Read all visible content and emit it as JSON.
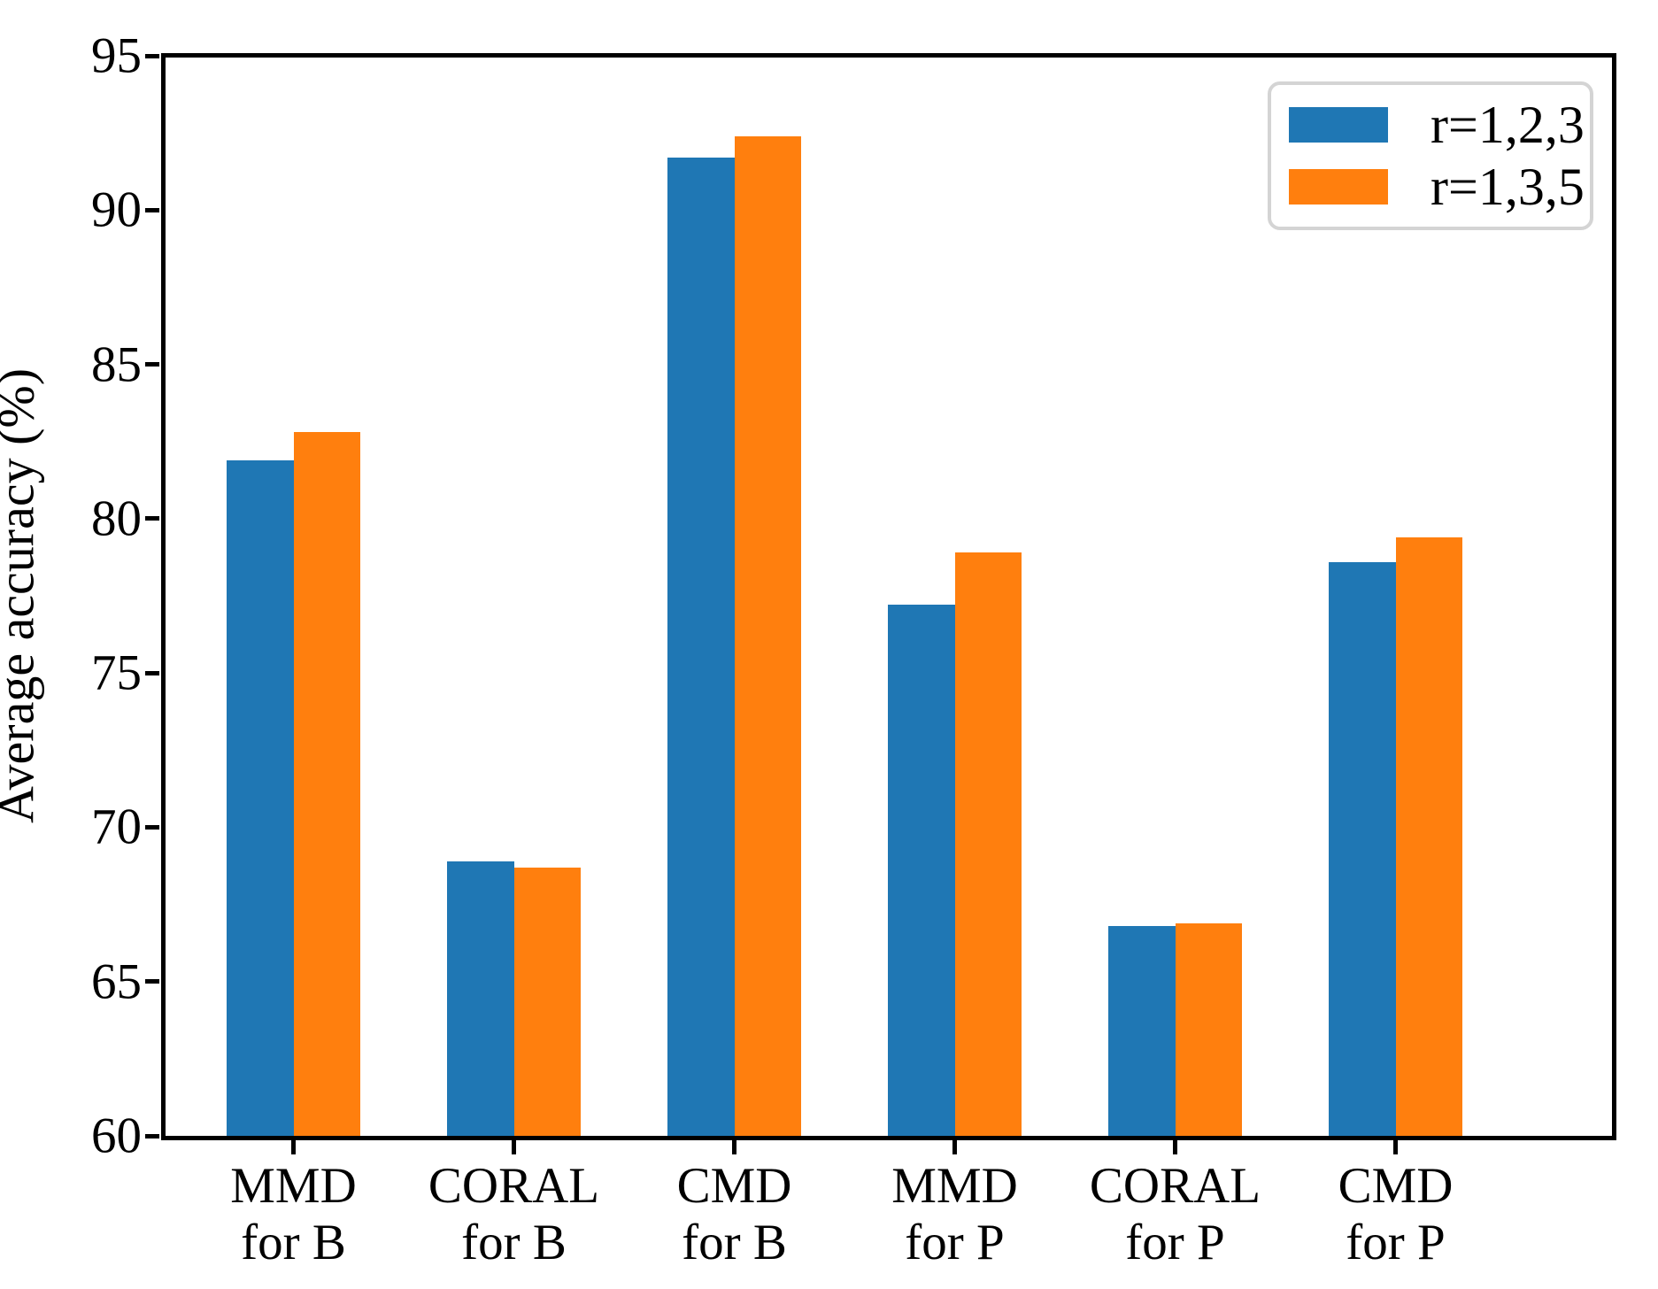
{
  "figure": {
    "background": "#ffffff",
    "axis_color": "#000000"
  },
  "chart_data": {
    "type": "bar",
    "title": "",
    "xlabel": "",
    "ylabel": "Average accuracy (%)",
    "categories": [
      "MMD\nfor B",
      "CORAL\nfor B",
      "CMD\nfor B",
      "MMD\nfor P",
      "CORAL\nfor P",
      "CMD\nfor P"
    ],
    "series": [
      {
        "name": "r=1,2,3",
        "color": "#1f77b4",
        "values": [
          81.9,
          68.9,
          91.7,
          77.2,
          66.8,
          78.6
        ]
      },
      {
        "name": "r=1,3,5",
        "color": "#ff7f0e",
        "values": [
          82.8,
          68.7,
          92.4,
          78.9,
          66.9,
          79.4
        ]
      }
    ],
    "ylim": [
      60,
      95
    ],
    "yticks": [
      60,
      65,
      70,
      75,
      80,
      85,
      90,
      95
    ],
    "grid": false,
    "legend_position": "upper right",
    "legend_border_color": "#d4d4d4"
  }
}
